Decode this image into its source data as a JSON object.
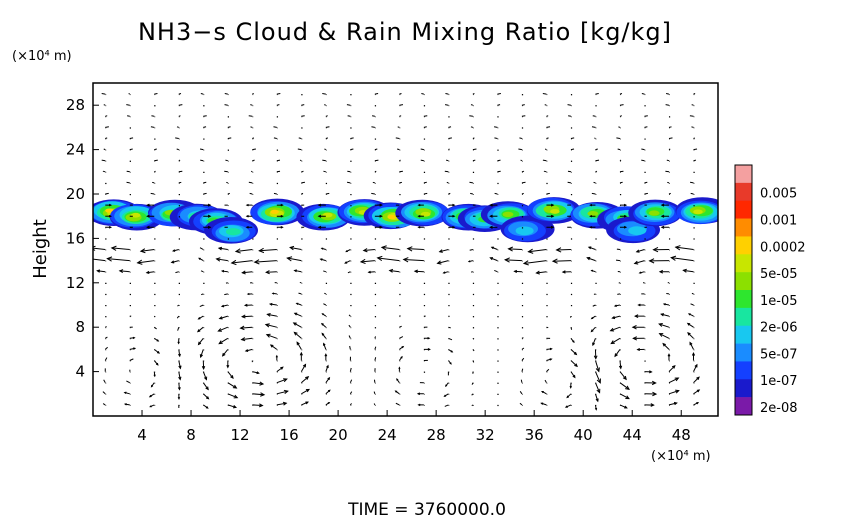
{
  "chart_data": {
    "type": "heatmap",
    "title": "NH3−s Cloud & Rain Mixing Ratio [kg/kg]",
    "ylabel": "Height",
    "y_unit": "(×10⁴ m)",
    "x_unit": "(×10⁴ m)",
    "footer": "TIME = 3760000.0",
    "xlim": [
      0,
      51
    ],
    "ylim": [
      0,
      30
    ],
    "x_ticks": [
      4,
      8,
      12,
      16,
      20,
      24,
      28,
      32,
      36,
      40,
      44,
      48
    ],
    "y_ticks": [
      4,
      8,
      12,
      16,
      20,
      24,
      28
    ],
    "grid": "dotted",
    "legend_position": "right",
    "colorbar": {
      "labels": [
        "0.005",
        "0.001",
        "0.0002",
        "5e-05",
        "1e-05",
        "2e-06",
        "5e-07",
        "1e-07",
        "2e-08"
      ],
      "colors": [
        "#f4a0a0",
        "#e83a2a",
        "#ff2800",
        "#ff8c00",
        "#ffd000",
        "#c8e600",
        "#8ce000",
        "#2ee62e",
        "#18e6a0",
        "#18c8f0",
        "#1a8cff",
        "#1440ff",
        "#1a1acc",
        "#7a1aa8"
      ]
    },
    "cloud_layer": {
      "y_bottom": 16,
      "y_top": 19.5,
      "cells": [
        {
          "x": 1.5,
          "y": 18.4,
          "level": 8
        },
        {
          "x": 3.5,
          "y": 18.0,
          "level": 7
        },
        {
          "x": 6.5,
          "y": 18.2,
          "level": 6
        },
        {
          "x": 8.5,
          "y": 18.0,
          "level": 4
        },
        {
          "x": 10.0,
          "y": 17.6,
          "level": 5
        },
        {
          "x": 11.5,
          "y": 16.6,
          "level": 4
        },
        {
          "x": 15.0,
          "y": 18.3,
          "level": 8
        },
        {
          "x": 19.0,
          "y": 18.0,
          "level": 7
        },
        {
          "x": 22.0,
          "y": 18.4,
          "level": 7
        },
        {
          "x": 24.5,
          "y": 18.0,
          "level": 8
        },
        {
          "x": 27.0,
          "y": 18.3,
          "level": 7
        },
        {
          "x": 30.5,
          "y": 18.0,
          "level": 6
        },
        {
          "x": 32.0,
          "y": 17.8,
          "level": 5
        },
        {
          "x": 34.0,
          "y": 18.2,
          "level": 6
        },
        {
          "x": 35.3,
          "y": 16.8,
          "level": 3
        },
        {
          "x": 37.5,
          "y": 18.5,
          "level": 7
        },
        {
          "x": 41.0,
          "y": 18.2,
          "level": 6
        },
        {
          "x": 43.5,
          "y": 17.8,
          "level": 5
        },
        {
          "x": 44.2,
          "y": 16.8,
          "level": 3
        },
        {
          "x": 46.0,
          "y": 18.3,
          "level": 6
        },
        {
          "x": 49.5,
          "y": 18.4,
          "level": 7
        }
      ]
    },
    "circulation_cells": [
      {
        "x": 13.5,
        "y": 5.0,
        "rx": 5.0,
        "ry": 3.8,
        "strength": 1.0,
        "dir": 1
      },
      {
        "x": 38.5,
        "y": 3.5,
        "rx": 3.0,
        "ry": 3.0,
        "strength": 0.6,
        "dir": -1
      },
      {
        "x": 45.0,
        "y": 5.0,
        "rx": 4.5,
        "ry": 3.5,
        "strength": 1.0,
        "dir": 1
      },
      {
        "x": 27.0,
        "y": 4.0,
        "rx": 3.0,
        "ry": 3.0,
        "strength": 0.5,
        "dir": -1
      },
      {
        "x": 4.0,
        "y": 4.0,
        "rx": 3.0,
        "ry": 3.0,
        "strength": 0.5,
        "dir": -1
      }
    ],
    "upper_flow": {
      "y_low": 12.5,
      "y_high": 16.0,
      "u": -1.6
    }
  }
}
